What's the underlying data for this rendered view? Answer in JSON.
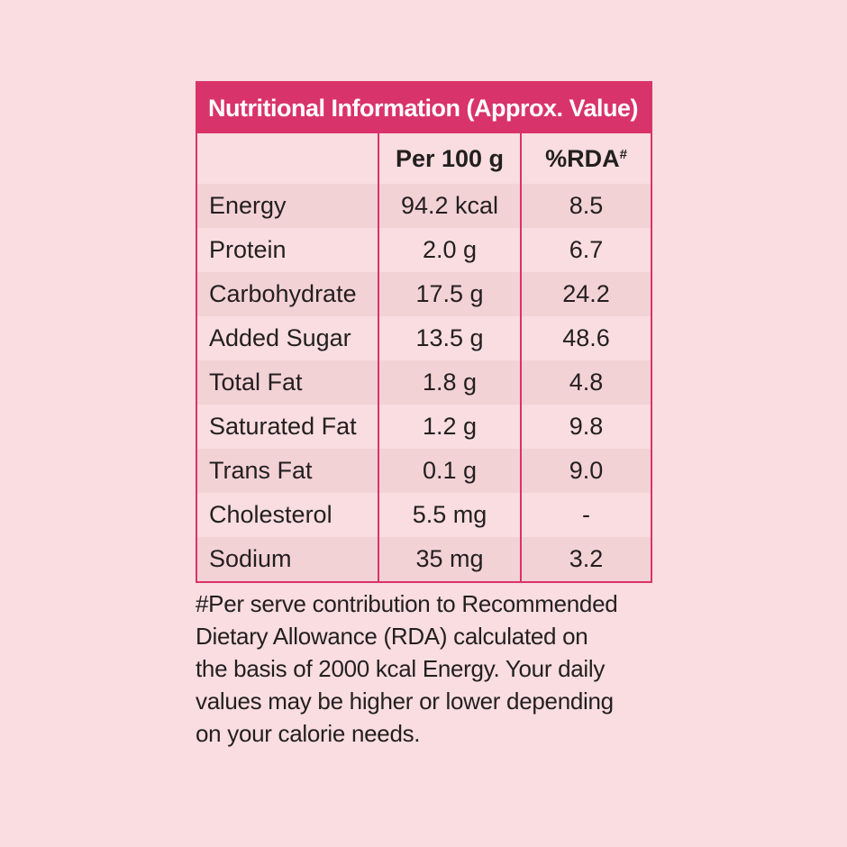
{
  "title": "Nutritional Information (Approx. Value)",
  "headers": {
    "nutrient": "",
    "per100g": "Per 100 g",
    "rda": "%RDA",
    "rda_marker": "#"
  },
  "rows": [
    {
      "nutrient": "Energy",
      "per100g": "94.2 kcal",
      "rda": "8.5"
    },
    {
      "nutrient": "Protein",
      "per100g": "2.0 g",
      "rda": "6.7"
    },
    {
      "nutrient": "Carbohydrate",
      "per100g": "17.5 g",
      "rda": "24.2"
    },
    {
      "nutrient": "Added Sugar",
      "per100g": "13.5 g",
      "rda": "48.6"
    },
    {
      "nutrient": "Total Fat",
      "per100g": "1.8 g",
      "rda": "4.8"
    },
    {
      "nutrient": "Saturated Fat",
      "per100g": "1.2 g",
      "rda": "9.8"
    },
    {
      "nutrient": "Trans Fat",
      "per100g": "0.1 g",
      "rda": "9.0"
    },
    {
      "nutrient": "Cholesterol",
      "per100g": "5.5 mg",
      "rda": "-"
    },
    {
      "nutrient": "Sodium",
      "per100g": "35 mg",
      "rda": "3.2"
    }
  ],
  "footnote": {
    "line1": "#Per serve contribution to Recommended",
    "line2": "Dietary Allowance (RDA) calculated on",
    "line3": "the basis of 2000 kcal Energy. Your daily",
    "line4": "values may be higher or lower depending",
    "line5": "on your calorie needs."
  },
  "colors": {
    "background": "#f9dde0",
    "accent": "#d9336b",
    "row_alt": "#f3d2d6",
    "text": "#231f20"
  }
}
